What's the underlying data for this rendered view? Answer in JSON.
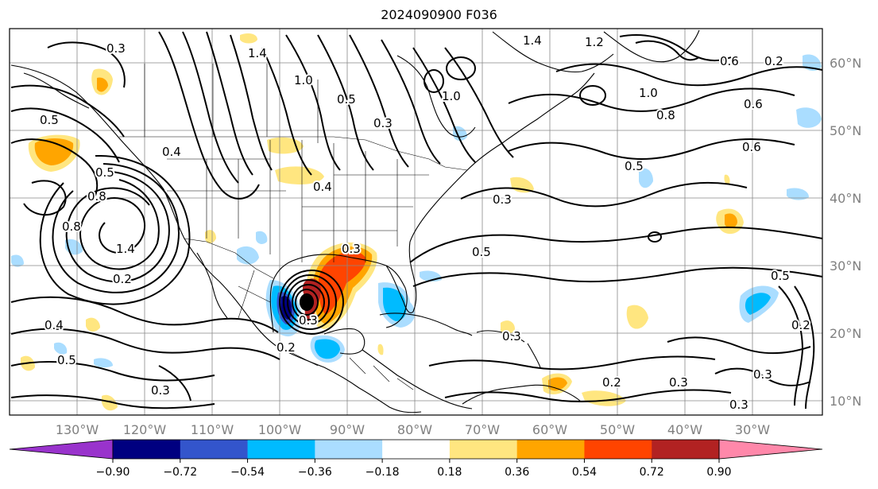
{
  "title": "2024090900 F036",
  "map": {
    "lon_labels": [
      "130°W",
      "120°W",
      "110°W",
      "100°W",
      "90°W",
      "80°W",
      "70°W",
      "60°W",
      "50°W",
      "40°W",
      "30°W"
    ],
    "lat_labels": [
      "60°N",
      "50°N",
      "40°N",
      "30°N",
      "20°N",
      "10°N"
    ],
    "contour_labels": [
      "0.3",
      "1.4",
      "1.0",
      "0.5",
      "1.0",
      "0.3",
      "1.4",
      "1.2",
      "0.6",
      "0.2",
      "0.8",
      "0.6",
      "0.5",
      "0.5",
      "0.4",
      "0.5",
      "0.4",
      "0.8",
      "1.4",
      "0.2",
      "0.3",
      "0.5",
      "0.3",
      "0.5",
      "0.2",
      "0.4",
      "0.5",
      "0.3",
      "0.3",
      "0.2",
      "0.3",
      "0.3",
      "0.2",
      "0.3",
      "0.6",
      "0.8",
      "1.0",
      "0.3"
    ],
    "colors": {
      "neg_extend": "#9933cc",
      "neg_090_072": "#000080",
      "neg_072_054": "#3355cc",
      "neg_054_036": "#00bbff",
      "neg_036_018": "#aaddff",
      "pos_018_036": "#ffe680",
      "pos_036_054": "#ffa500",
      "pos_054_072": "#ff4400",
      "pos_072_090": "#b22222",
      "pos_extend": "#ff88aa"
    }
  },
  "colorbar": {
    "ticks": [
      "−0.90",
      "−0.72",
      "−0.54",
      "−0.36",
      "−0.18",
      "0.18",
      "0.36",
      "0.54",
      "0.72",
      "0.90"
    ],
    "colors": [
      "#9933cc",
      "#000080",
      "#3355cc",
      "#00bbff",
      "#aaddff",
      "#ffffff",
      "#ffe680",
      "#ffa500",
      "#ff4400",
      "#b22222",
      "#ff88aa"
    ]
  }
}
